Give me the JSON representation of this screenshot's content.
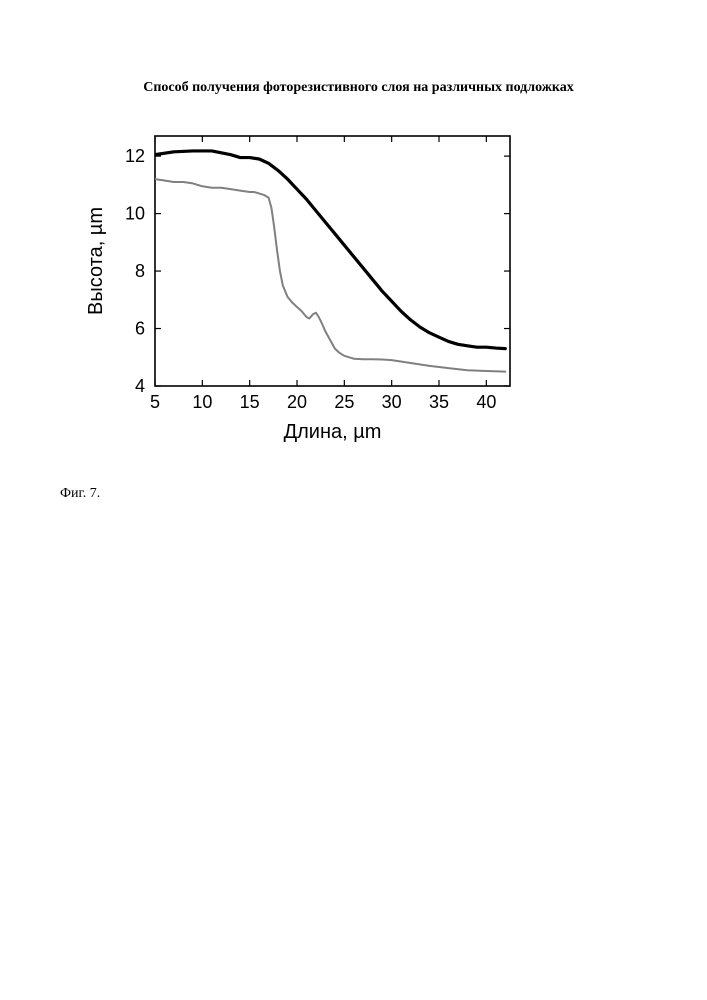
{
  "title": "Способ получения фоторезистивного слоя на различных подложках",
  "caption": "Фиг. 7.",
  "chart": {
    "type": "line",
    "background_color": "#ffffff",
    "axis_color": "#000000",
    "tick_font_size": 18,
    "label_font_size": 20,
    "axis_line_width": 1.6,
    "tick_line_width": 1.2,
    "xlabel": "Длина, µm",
    "ylabel": "Высота, µm",
    "xlim": [
      5,
      42.5
    ],
    "ylim": [
      4,
      12.7
    ],
    "xticks": [
      5,
      10,
      15,
      20,
      25,
      30,
      35,
      40
    ],
    "yticks": [
      4,
      6,
      8,
      10,
      12
    ],
    "series": [
      {
        "name": "series-black",
        "color": "#000000",
        "line_width": 3.2,
        "x": [
          5,
          7,
          9,
          11,
          13,
          14,
          15,
          16,
          17,
          18,
          19,
          20,
          21,
          22,
          23,
          24,
          25,
          26,
          27,
          28,
          29,
          30,
          31,
          32,
          33,
          34,
          35,
          36,
          37,
          38,
          39,
          40,
          41,
          42
        ],
        "y": [
          12.05,
          12.15,
          12.18,
          12.18,
          12.05,
          11.95,
          11.95,
          11.9,
          11.75,
          11.5,
          11.2,
          10.85,
          10.5,
          10.1,
          9.7,
          9.3,
          8.9,
          8.5,
          8.1,
          7.7,
          7.3,
          6.95,
          6.6,
          6.3,
          6.05,
          5.85,
          5.7,
          5.55,
          5.45,
          5.4,
          5.35,
          5.35,
          5.32,
          5.3
        ]
      },
      {
        "name": "series-gray",
        "color": "#808080",
        "line_width": 2.0,
        "x": [
          5,
          6,
          7,
          8,
          9,
          10,
          11,
          12,
          13,
          14,
          15,
          15.5,
          16,
          16.5,
          17,
          17.3,
          17.6,
          17.9,
          18.2,
          18.5,
          19,
          19.5,
          20,
          20.5,
          21,
          21.3,
          21.7,
          22,
          22.3,
          22.6,
          23,
          23.5,
          24,
          24.5,
          25,
          26,
          27,
          28,
          29,
          30,
          32,
          34,
          36,
          38,
          40,
          42
        ],
        "y": [
          11.2,
          11.15,
          11.1,
          11.1,
          11.05,
          10.95,
          10.9,
          10.9,
          10.85,
          10.8,
          10.75,
          10.75,
          10.7,
          10.65,
          10.55,
          10.2,
          9.5,
          8.7,
          8.0,
          7.5,
          7.1,
          6.9,
          6.75,
          6.6,
          6.4,
          6.35,
          6.5,
          6.55,
          6.4,
          6.2,
          5.9,
          5.6,
          5.3,
          5.15,
          5.05,
          4.95,
          4.93,
          4.93,
          4.92,
          4.9,
          4.8,
          4.7,
          4.62,
          4.55,
          4.52,
          4.5
        ]
      }
    ]
  }
}
